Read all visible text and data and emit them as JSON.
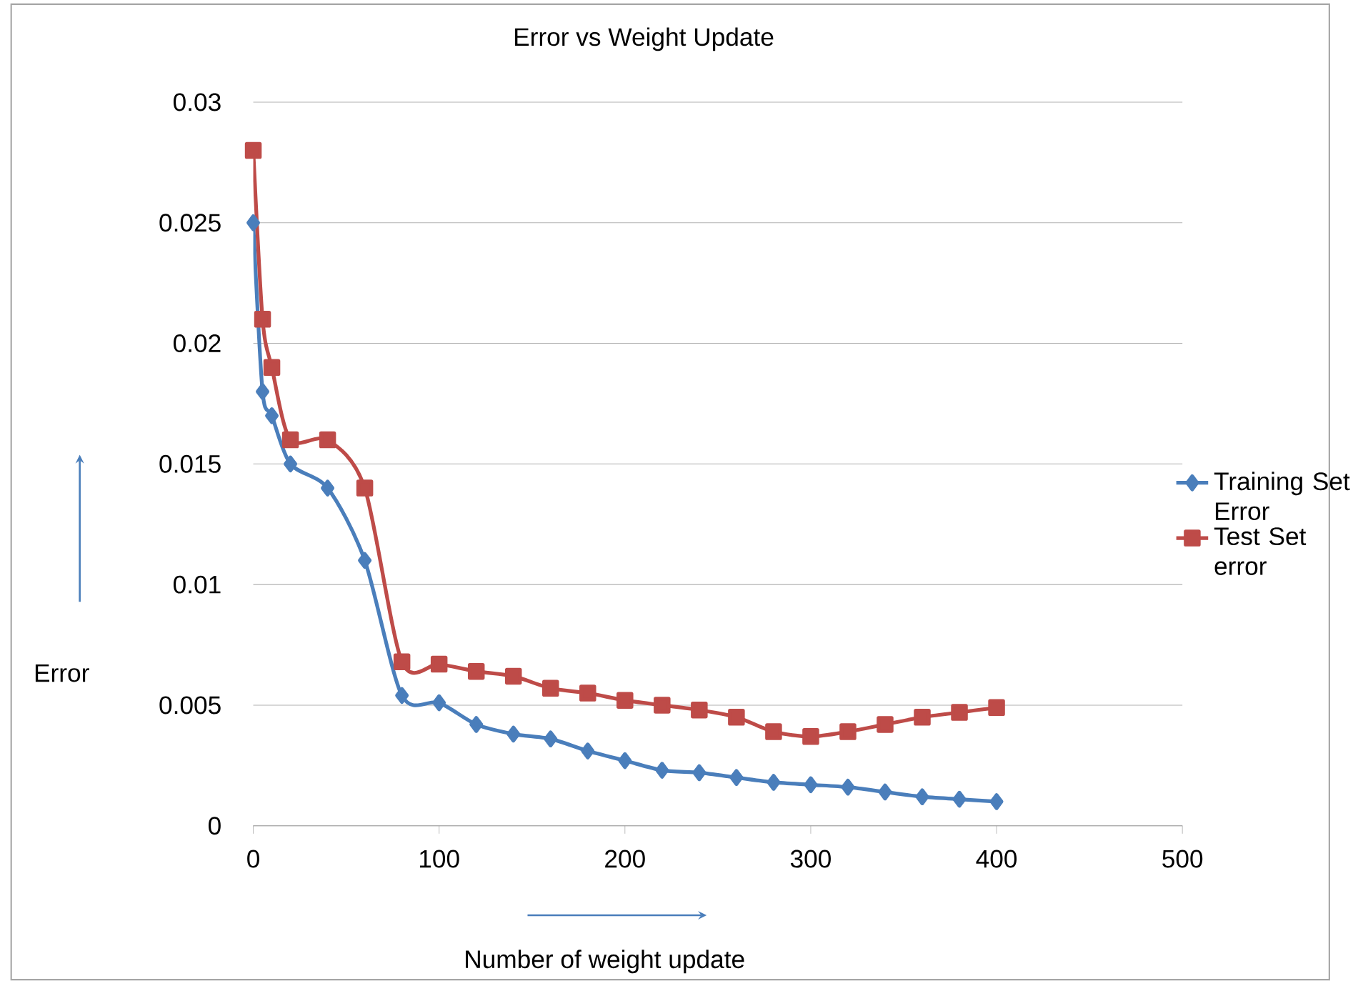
{
  "chart_data": {
    "type": "line",
    "title": "Error vs Weight Update",
    "xlabel": "Number of weight update",
    "ylabel": "Error",
    "x": [
      0,
      5,
      10,
      20,
      40,
      60,
      80,
      100,
      120,
      140,
      160,
      180,
      200,
      220,
      240,
      260,
      280,
      300,
      320,
      340,
      360,
      380,
      400
    ],
    "series": [
      {
        "name": "Training Set Error",
        "color": "#4a7ebb",
        "marker": "diamond",
        "values": [
          0.025,
          0.018,
          0.017,
          0.015,
          0.014,
          0.011,
          0.0054,
          0.0051,
          0.0042,
          0.0038,
          0.0036,
          0.0031,
          0.0027,
          0.0023,
          0.0022,
          0.002,
          0.0018,
          0.0017,
          0.0016,
          0.0014,
          0.0012,
          0.0011,
          0.001
        ]
      },
      {
        "name": "Test Set error",
        "color": "#be4b48",
        "marker": "square",
        "values": [
          0.028,
          0.021,
          0.019,
          0.016,
          0.016,
          0.014,
          0.0068,
          0.0067,
          0.0064,
          0.0062,
          0.0057,
          0.0055,
          0.0052,
          0.005,
          0.0048,
          0.0045,
          0.0039,
          0.0037,
          0.0039,
          0.0042,
          0.0045,
          0.0047,
          0.0049
        ]
      }
    ],
    "xlim": [
      0,
      500
    ],
    "xticks": [
      0,
      100,
      200,
      300,
      400,
      500
    ],
    "ylim": [
      0,
      0.03
    ],
    "yticks": [
      0,
      0.005,
      0.01,
      0.015,
      0.02,
      0.025,
      0.03
    ],
    "grid": "y",
    "legend": "right"
  }
}
